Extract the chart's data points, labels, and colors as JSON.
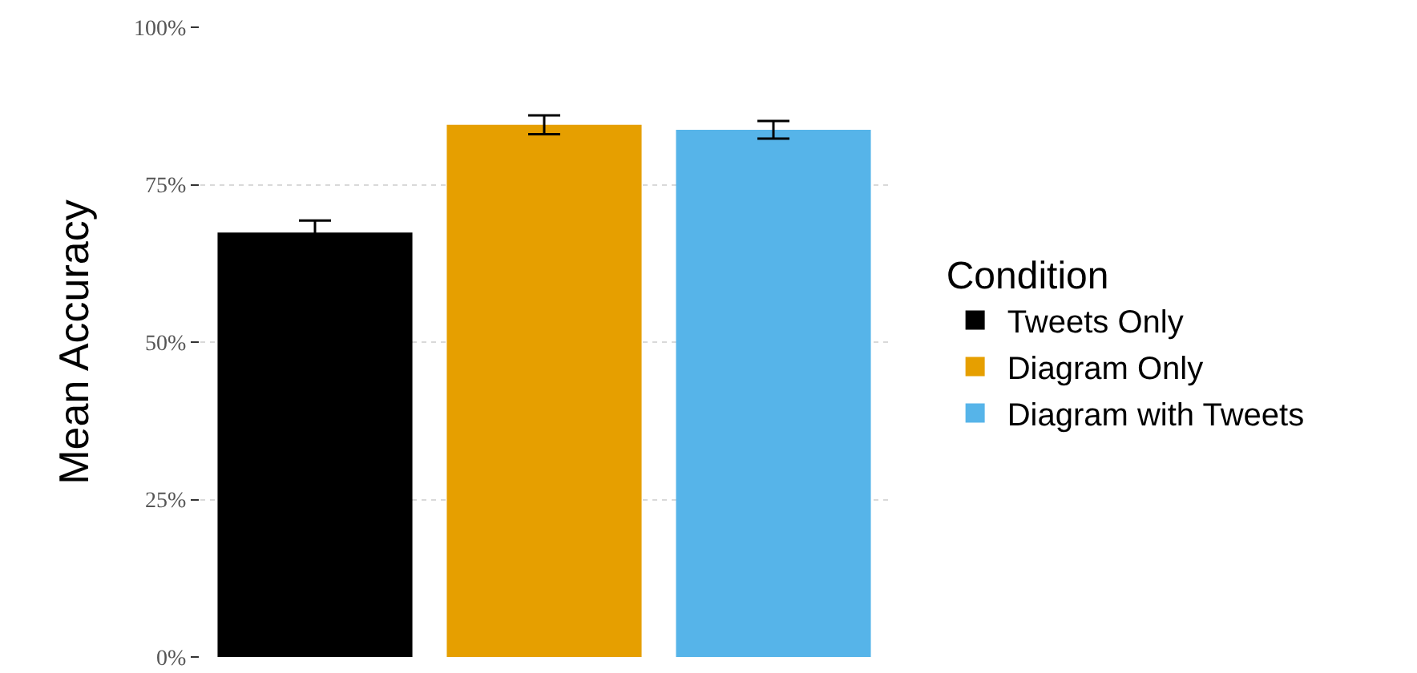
{
  "chart_data": {
    "type": "bar",
    "ylabel": "Mean Accuracy",
    "legend_title": "Condition",
    "categories": [
      null,
      null,
      null
    ],
    "series": [
      {
        "name": "Tweets Only",
        "color": "#000000",
        "values": [
          67.4,
          null,
          null
        ],
        "errors": [
          1.9,
          null,
          null
        ]
      },
      {
        "name": "Diagram Only",
        "color": "#e69f00",
        "values": [
          null,
          84.5,
          null
        ],
        "errors": [
          null,
          1.5,
          null
        ]
      },
      {
        "name": "Diagram with Tweets",
        "color": "#56b4e9",
        "values": [
          null,
          null,
          83.7
        ],
        "errors": [
          null,
          null,
          1.4
        ]
      }
    ],
    "ylim": [
      0,
      100
    ],
    "yticks": [
      {
        "value": 0,
        "label": "0%"
      },
      {
        "value": 25,
        "label": "25%"
      },
      {
        "value": 50,
        "label": "50%"
      },
      {
        "value": 75,
        "label": "75%"
      },
      {
        "value": 100,
        "label": "100%"
      }
    ],
    "grid": "y",
    "legend": "right"
  }
}
